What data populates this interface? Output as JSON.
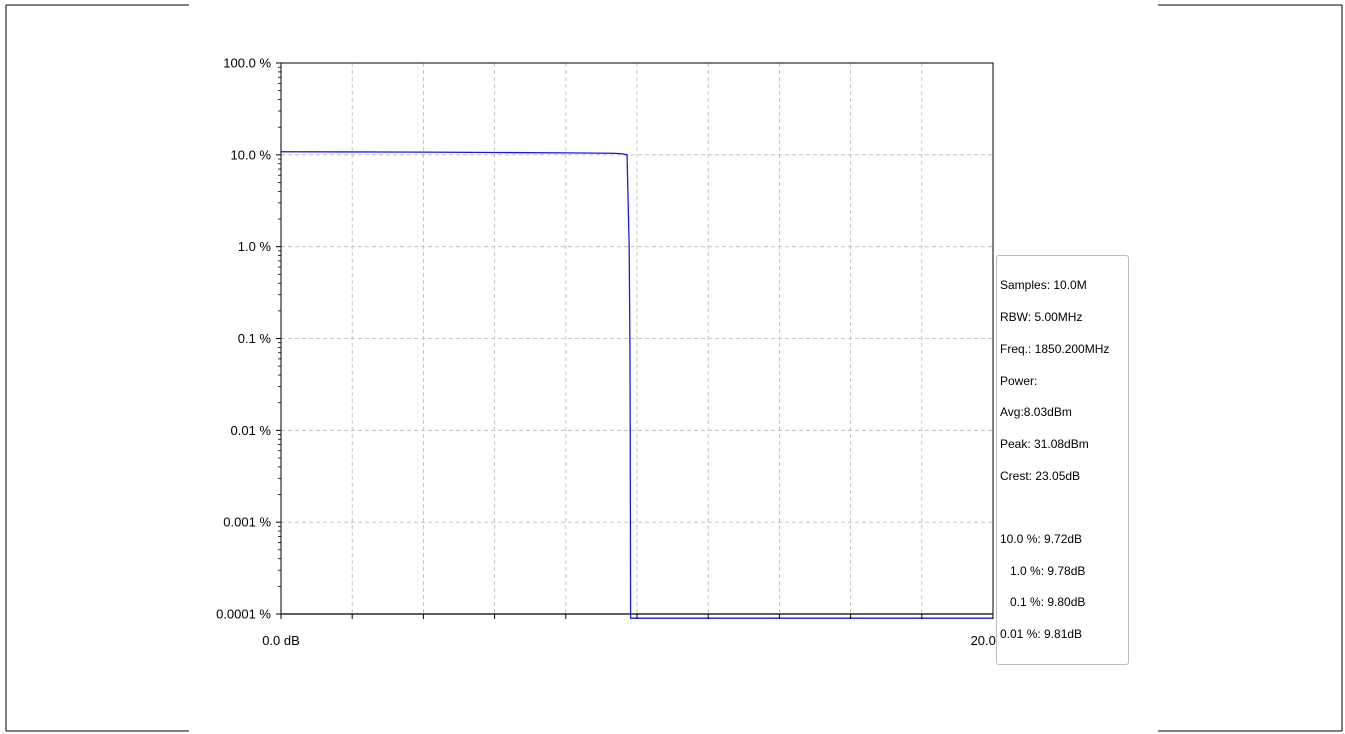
{
  "chart_data": {
    "type": "line",
    "title": "",
    "xlabel": "",
    "ylabel": "",
    "x_scale": "linear",
    "y_scale": "log",
    "xlim": [
      0,
      20
    ],
    "ylim": [
      0.0001,
      100
    ],
    "grid": true,
    "x_tick_values": [
      0,
      2,
      4,
      6,
      8,
      10,
      12,
      14,
      16,
      18,
      20
    ],
    "x_tick_labels": [
      {
        "value": 0,
        "text": "0.0 dB"
      },
      {
        "value": 20,
        "text": "20.0 dB"
      }
    ],
    "y_tick_labels": [
      {
        "value": 100,
        "text": "100.0 %"
      },
      {
        "value": 10,
        "text": "10.0 %"
      },
      {
        "value": 1,
        "text": "1.0 %"
      },
      {
        "value": 0.1,
        "text": "0.1 %"
      },
      {
        "value": 0.01,
        "text": "0.01 %"
      },
      {
        "value": 0.001,
        "text": "0.001 %"
      },
      {
        "value": 0.0001,
        "text": "0.0001 %"
      }
    ],
    "series": [
      {
        "color": "#1a1adb",
        "x": [
          0,
          2,
          4,
          6,
          8,
          9.3,
          9.55,
          9.72,
          9.78,
          9.8,
          9.81,
          9.82,
          20
        ],
        "y": [
          10.8,
          10.75,
          10.7,
          10.6,
          10.5,
          10.4,
          10.3,
          10.0,
          1.0,
          0.1,
          0.01,
          9e-05,
          9e-05
        ]
      }
    ],
    "reference_line": {
      "y": 0.0001,
      "color": "#000000"
    }
  },
  "stats": {
    "lines": [
      "Samples: 10.0M",
      "RBW: 5.00MHz",
      "Freq.: 1850.200MHz",
      "Power:",
      "Avg:8.03dBm",
      "Peak: 31.08dBm",
      "Crest: 23.05dB"
    ],
    "percentiles": [
      "10.0 %: 9.72dB",
      "   1.0 %: 9.78dB",
      "   0.1 %: 9.80dB",
      "0.01 %: 9.81dB"
    ]
  }
}
